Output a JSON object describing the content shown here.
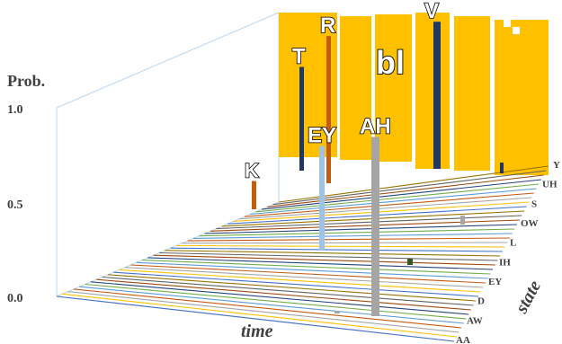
{
  "chart_data": {
    "type": "bar",
    "ylabel": "Prob.",
    "xlabel": "time",
    "zlabel": "state",
    "ytick_labels": [
      "1.0",
      "0.5",
      "0.0"
    ],
    "yticks": [
      1.0,
      0.5,
      0.0
    ],
    "ylim": [
      0,
      1
    ],
    "state_labels": [
      "AA",
      "AW",
      "D",
      "EY",
      "IH",
      "L",
      "OW",
      "S",
      "UH",
      "Y"
    ],
    "blank_label": "bl",
    "blank_color": "#FFC000",
    "grid": false,
    "peaks": [
      {
        "label": "K",
        "color": "#C55A11",
        "value": 0.15
      },
      {
        "label": "T",
        "color": "#203864",
        "value": 0.55
      },
      {
        "label": "R",
        "color": "#C55A11",
        "value": 0.78
      },
      {
        "label": "EY",
        "color": "#9DC3E6",
        "value": 0.55
      },
      {
        "label": "AH",
        "color": "#A5A5A5",
        "value": 0.95
      },
      {
        "label": "V",
        "color": "#203864",
        "value": 0.78
      }
    ]
  }
}
